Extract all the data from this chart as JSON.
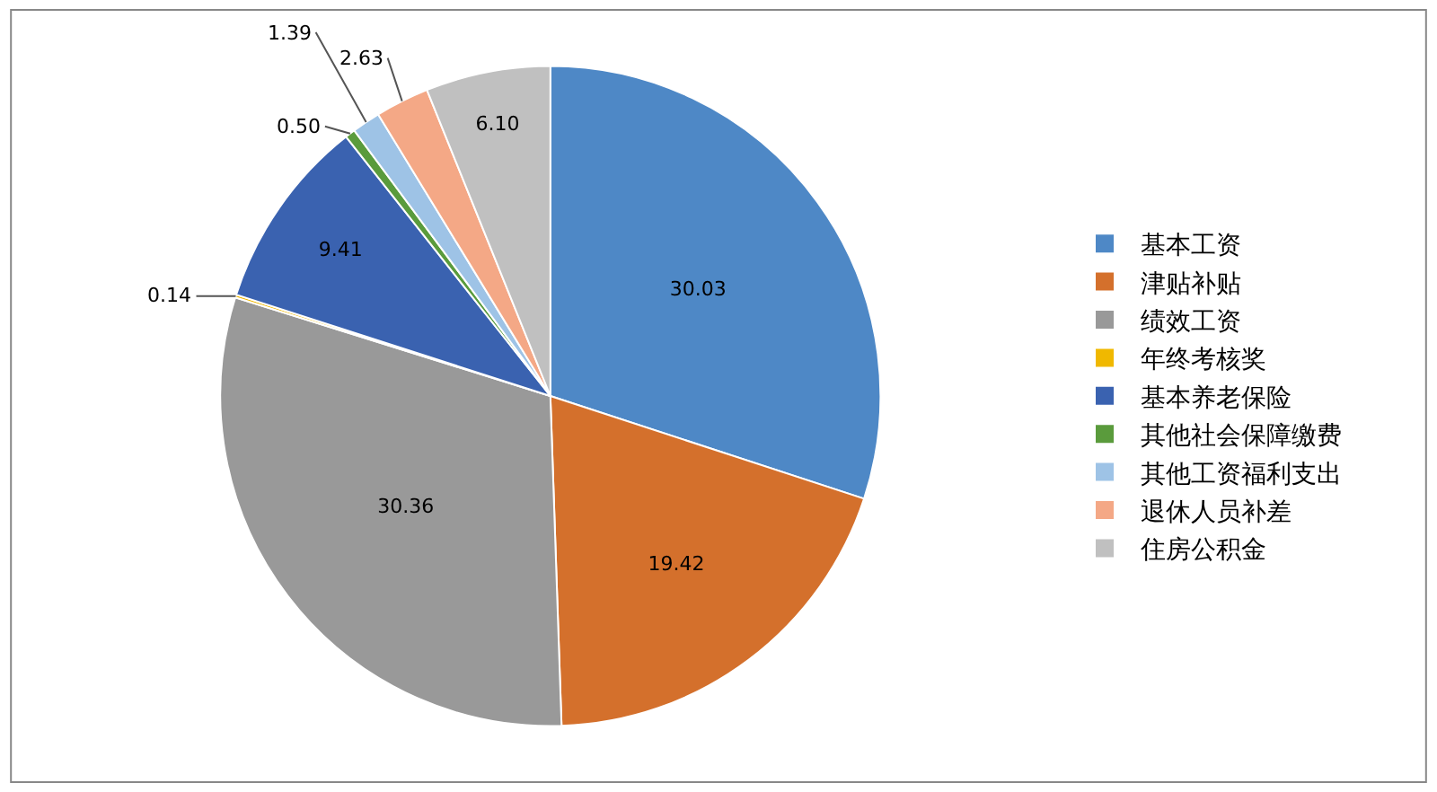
{
  "chart_data": {
    "type": "pie",
    "categories": [
      "基本工资",
      "津贴补贴",
      "绩效工资",
      "年终考核奖",
      "基本养老保险",
      "其他社会保障缴费",
      "其他工资福利支出",
      "退休人员补差",
      "住房公积金"
    ],
    "values": [
      30.03,
      19.42,
      30.36,
      0.14,
      9.41,
      0.5,
      1.39,
      2.63,
      6.1
    ],
    "colors": [
      "#4e88c6",
      "#d4702c",
      "#999999",
      "#f0b800",
      "#3a62b0",
      "#5a9b3c",
      "#9ec3e6",
      "#f4a886",
      "#c0c0c0"
    ],
    "value_labels": [
      "30.03",
      "19.42",
      "30.36",
      "0.14",
      "9.41",
      "0.50",
      "1.39",
      "2.63",
      "6.10"
    ],
    "legend": "right"
  }
}
